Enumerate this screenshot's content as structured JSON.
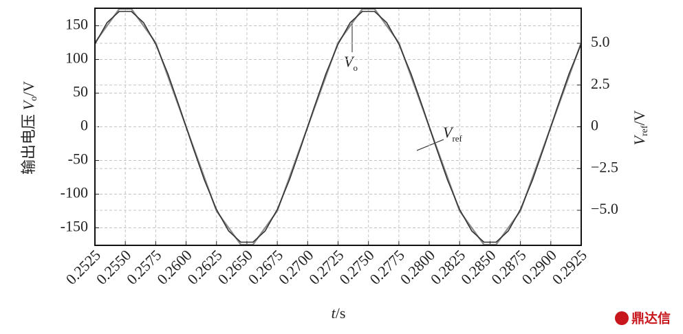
{
  "chart_data": {
    "type": "line",
    "xlabel": {
      "var": "t",
      "unit": "/s"
    },
    "ylabel": {
      "text": "输出电压 ",
      "var": "V",
      "sub": "o",
      "unit": "/V"
    },
    "y2label": {
      "var": "V",
      "sub": "ref",
      "unit": "/V"
    },
    "annotations": [
      {
        "var": "V",
        "sub": "o"
      },
      {
        "var": "V",
        "sub": "ref"
      }
    ],
    "watermark": "鼎达信",
    "xlim": [
      0.2525,
      0.2925
    ],
    "xticks": [
      {
        "value": 0.2525,
        "label": "0.2525"
      },
      {
        "value": 0.255,
        "label": "0.2550"
      },
      {
        "value": 0.2575,
        "label": "0.2575"
      },
      {
        "value": 0.26,
        "label": "0.2600"
      },
      {
        "value": 0.2625,
        "label": "0.2625"
      },
      {
        "value": 0.265,
        "label": "0.2650"
      },
      {
        "value": 0.2675,
        "label": "0.2675"
      },
      {
        "value": 0.27,
        "label": "0.2700"
      },
      {
        "value": 0.2725,
        "label": "0.2725"
      },
      {
        "value": 0.275,
        "label": "0.2750"
      },
      {
        "value": 0.2775,
        "label": "0.2775"
      },
      {
        "value": 0.28,
        "label": "0.2800"
      },
      {
        "value": 0.2825,
        "label": "0.2825"
      },
      {
        "value": 0.285,
        "label": "0.2850"
      },
      {
        "value": 0.2875,
        "label": "0.2875"
      },
      {
        "value": 0.29,
        "label": "0.2900"
      },
      {
        "value": 0.2925,
        "label": "0.2925"
      }
    ],
    "ylim": [
      -176,
      176
    ],
    "yticks": [
      -150,
      -100,
      -50,
      0,
      50,
      100,
      150
    ],
    "y2lim": [
      -7.1,
      7.1
    ],
    "y2ticks": [
      {
        "value": -5,
        "label": "−5.0"
      },
      {
        "value": -2.5,
        "label": "−2.5"
      },
      0,
      {
        "value": 2.5,
        "label": "2.5"
      },
      {
        "value": 5,
        "label": "5.0"
      }
    ],
    "grid": true,
    "x": [
      0.2525,
      0.2535,
      0.2545,
      0.2555,
      0.2565,
      0.2575,
      0.2585,
      0.2595,
      0.2605,
      0.2615,
      0.2625,
      0.2635,
      0.2645,
      0.2655,
      0.2665,
      0.2675,
      0.2685,
      0.2695,
      0.2705,
      0.2715,
      0.2725,
      0.2735,
      0.2745,
      0.2755,
      0.2765,
      0.2775,
      0.2785,
      0.2795,
      0.2805,
      0.2815,
      0.2825,
      0.2835,
      0.2845,
      0.2855,
      0.2865,
      0.2875,
      0.2885,
      0.2895,
      0.2905,
      0.2915,
      0.2925
    ],
    "series": [
      {
        "name": "Vo",
        "color": "#8a8a8a",
        "values": [
          125,
          150,
          175,
          175,
          150,
          125,
          75,
          25,
          -25,
          -75,
          -125,
          -150,
          -175,
          -175,
          -150,
          -125,
          -75,
          -25,
          25,
          75,
          125,
          150,
          175,
          175,
          150,
          125,
          75,
          25,
          -25,
          -75,
          -125,
          -150,
          -175,
          -175,
          -150,
          -125,
          -75,
          -25,
          25,
          75,
          125
        ]
      },
      {
        "name": "Vref",
        "color": "#333333",
        "axis": "y2",
        "values": [
          4.95,
          6.24,
          6.91,
          6.91,
          6.24,
          4.95,
          3.18,
          1.09,
          -1.09,
          -3.18,
          -4.95,
          -6.24,
          -6.91,
          -6.91,
          -6.24,
          -4.95,
          -3.18,
          -1.09,
          1.09,
          3.18,
          4.95,
          6.24,
          6.91,
          6.91,
          6.24,
          4.95,
          3.18,
          1.09,
          -1.09,
          -3.18,
          -4.95,
          -6.24,
          -6.91,
          -6.91,
          -6.24,
          -4.95,
          -3.18,
          -1.09,
          1.09,
          3.18,
          4.95
        ]
      }
    ]
  }
}
